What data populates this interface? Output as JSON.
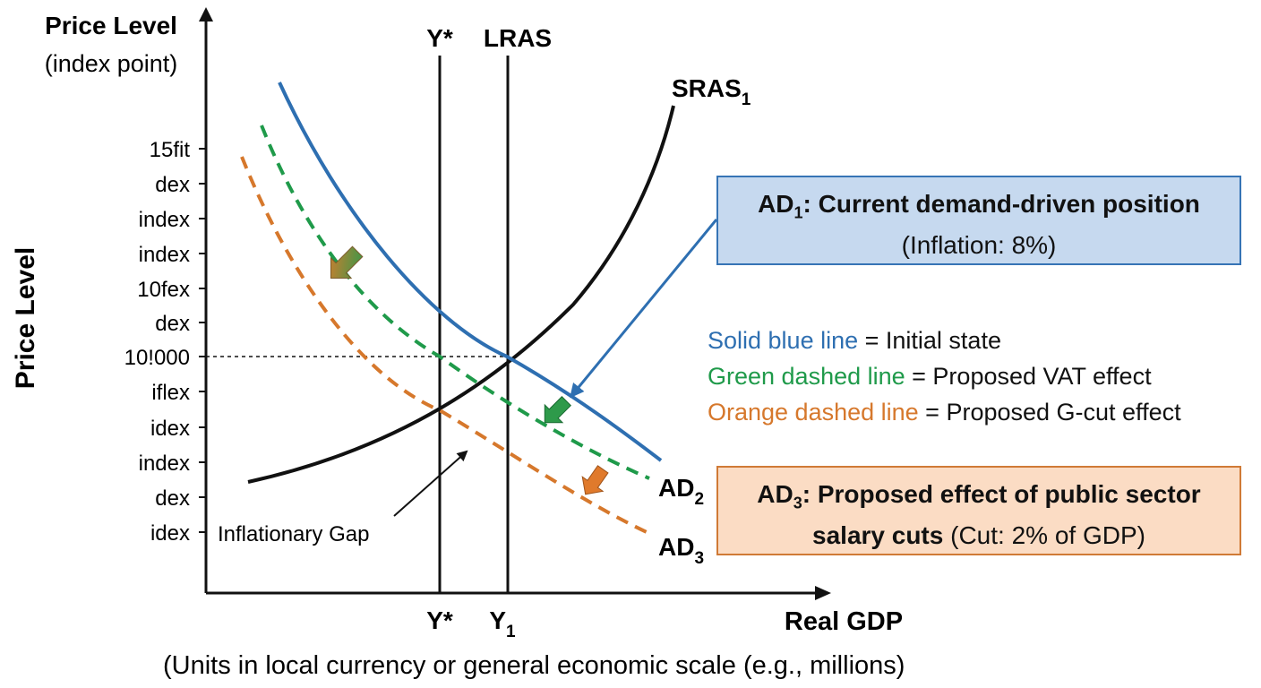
{
  "y_axis": {
    "title": "Price Level",
    "subtitle": "(index point)",
    "side_title": "Price Level",
    "ticks": [
      "15fit",
      "dex",
      "index",
      "index",
      "10fex",
      "dex",
      "10!000",
      "iflex",
      "idex",
      "index",
      "dex",
      "idex"
    ]
  },
  "x_axis": {
    "title": "Real GDP",
    "ticks": [
      "Y*",
      "Y",
      "1"
    ],
    "units_note": "(Units in local currency or general economic scale (e.g., millions)"
  },
  "vertical_lines": {
    "ystar_label": "Y*",
    "lras_label": "LRAS"
  },
  "curves": {
    "sras": {
      "label": "SRAS",
      "sub": "1",
      "color": "#000000"
    },
    "ad1": {
      "color": "#2e6fb1"
    },
    "ad2": {
      "label": "AD",
      "sub": "2",
      "color": "#1f9a4a"
    },
    "ad3": {
      "label": "AD",
      "sub": "3",
      "color": "#d6782c"
    }
  },
  "annotation": {
    "gap": "Inflationary Gap"
  },
  "box_ad1": {
    "title_prefix": "AD",
    "title_sub": "1",
    "title_rest": ": Current demand-driven position",
    "detail": "(Inflation: 8%)",
    "fill": "#c6d9ef",
    "border": "#3674b5"
  },
  "box_ad3": {
    "title_prefix": "AD",
    "title_sub": "3",
    "title_rest": ": Proposed effect of public sector",
    "line2_bold": "salary cuts",
    "line2_rest": " (Cut: 2% of GDP)",
    "fill": "#fbdcc4",
    "border": "#d07a36"
  },
  "legend": [
    {
      "key": "Solid blue line",
      "text": " = Initial state",
      "color": "#2e6fb1"
    },
    {
      "key": "Green dashed line",
      "text": " = Proposed VAT effect",
      "color": "#1f9a4a"
    },
    {
      "key": "Orange dashed line",
      "text": " = Proposed G-cut effect",
      "color": "#d6782c"
    }
  ]
}
